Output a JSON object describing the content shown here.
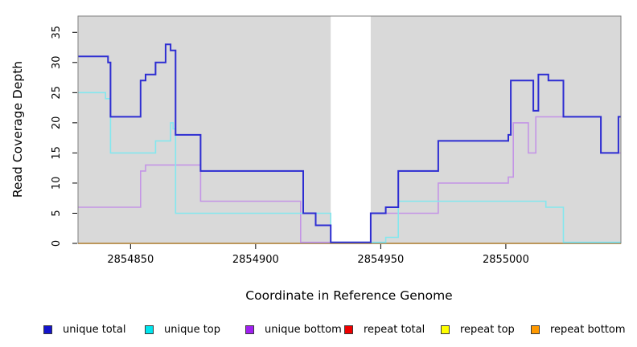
{
  "chart_data": {
    "type": "line",
    "subtype": "step-post-coverage",
    "title": "",
    "xlabel": "Coordinate in Reference Genome",
    "ylabel": "Read Coverage Depth",
    "xlim": [
      2854829,
      2855046
    ],
    "ylim": [
      0,
      37.7
    ],
    "x_ticks": [
      2854850,
      2854900,
      2854950,
      2855000
    ],
    "y_ticks": [
      0,
      5,
      10,
      15,
      20,
      25,
      30,
      35
    ],
    "grid": false,
    "plot_bg": "#d9d9d9",
    "box_color": "#7f7f7f",
    "masked_region": {
      "x_start": 2854930,
      "x_end": 2854946,
      "color": "#ffffff"
    },
    "legend_position": "bottom",
    "series": [
      {
        "name": "unique total",
        "color": "#2d2dd2",
        "legend_color": "#1414cc",
        "width": 2,
        "points": [
          [
            2854829,
            31
          ],
          [
            2854841,
            30
          ],
          [
            2854842,
            21
          ],
          [
            2854854,
            27
          ],
          [
            2854856,
            28
          ],
          [
            2854860,
            30
          ],
          [
            2854864,
            33
          ],
          [
            2854866,
            32
          ],
          [
            2854868,
            18
          ],
          [
            2854878,
            12
          ],
          [
            2854919,
            5
          ],
          [
            2854924,
            3
          ],
          [
            2854930,
            0
          ],
          [
            2854946,
            5
          ],
          [
            2854952,
            6
          ],
          [
            2854957,
            12
          ],
          [
            2854973,
            17
          ],
          [
            2855001,
            18
          ],
          [
            2855002,
            27
          ],
          [
            2855011,
            22
          ],
          [
            2855013,
            28
          ],
          [
            2855017,
            27
          ],
          [
            2855023,
            21
          ],
          [
            2855038,
            15
          ],
          [
            2855045,
            21
          ]
        ]
      },
      {
        "name": "unique top",
        "color": "#84e7ee",
        "legend_color": "#00e5ee",
        "width": 1.6,
        "points": [
          [
            2854829,
            25
          ],
          [
            2854840,
            24
          ],
          [
            2854842,
            15
          ],
          [
            2854860,
            17
          ],
          [
            2854866,
            20
          ],
          [
            2854867,
            19
          ],
          [
            2854868,
            5
          ],
          [
            2854930,
            0
          ],
          [
            2854952,
            1
          ],
          [
            2854957,
            7
          ],
          [
            2855016,
            6
          ],
          [
            2855023,
            0
          ]
        ]
      },
      {
        "name": "unique bottom",
        "color": "#c495e6",
        "legend_color": "#a020f0",
        "width": 1.6,
        "points": [
          [
            2854829,
            6
          ],
          [
            2854854,
            12
          ],
          [
            2854856,
            13
          ],
          [
            2854878,
            7
          ],
          [
            2854918,
            0
          ],
          [
            2854946,
            5
          ],
          [
            2854973,
            10
          ],
          [
            2855001,
            11
          ],
          [
            2855003,
            20
          ],
          [
            2855009,
            15
          ],
          [
            2855012,
            21
          ],
          [
            2855038,
            15
          ]
        ]
      },
      {
        "name": "repeat total",
        "color": "#e03a3a",
        "legend_color": "#ee0000",
        "width": 1.6,
        "points": [
          [
            2854829,
            0
          ]
        ]
      },
      {
        "name": "repeat top",
        "color": "#ffe84d",
        "legend_color": "#ffff00",
        "width": 1.6,
        "points": [
          [
            2854829,
            0
          ]
        ]
      },
      {
        "name": "repeat bottom",
        "color": "#ff9d00",
        "legend_color": "#ff9900",
        "width": 1.6,
        "points": [
          [
            2854829,
            0
          ]
        ]
      }
    ]
  }
}
